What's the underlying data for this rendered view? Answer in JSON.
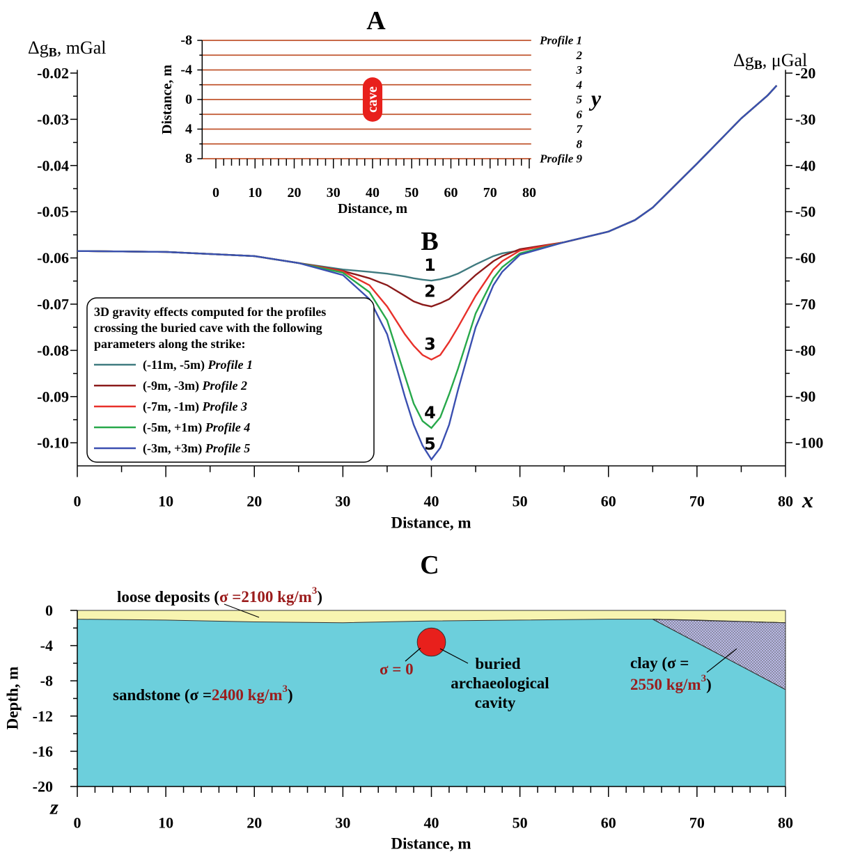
{
  "chart_data": [
    {
      "type": "profile_map",
      "title": "A",
      "xlim": [
        -3.5,
        80.5
      ],
      "ylim": [
        -8,
        8
      ],
      "xticks": [
        0,
        10,
        20,
        30,
        40,
        50,
        60,
        70,
        80
      ],
      "xticks_minor": [
        2,
        4,
        6,
        8,
        12,
        14,
        16,
        18,
        22,
        24,
        26,
        28,
        32,
        34,
        36,
        38,
        42,
        44,
        46,
        48,
        52,
        54,
        56,
        58,
        62,
        64,
        66,
        68,
        72,
        74,
        76,
        78
      ],
      "yticks": [
        -8,
        -4,
        0,
        4,
        8
      ],
      "yticks_minor": [
        -6,
        -2,
        2,
        6
      ],
      "xlabel": "Distance, m",
      "ylabel": "Distance, m",
      "axis_name": "y",
      "profile_color": "#c0552e",
      "profiles": [
        {
          "label": "Profile 1",
          "y": -8
        },
        {
          "label": "2",
          "y": -6
        },
        {
          "label": "3",
          "y": -4
        },
        {
          "label": "4",
          "y": -2
        },
        {
          "label": "5",
          "y": 0
        },
        {
          "label": "6",
          "y": 2
        },
        {
          "label": "7",
          "y": 4
        },
        {
          "label": "8",
          "y": 6
        },
        {
          "label": "Profile 9",
          "y": 8
        }
      ],
      "cave": {
        "label": "cave",
        "x": [
          37.5,
          42.5
        ],
        "y": [
          -3,
          3
        ],
        "color": "#e8201c"
      }
    },
    {
      "type": "line",
      "title": "B",
      "xlim": [
        0,
        80
      ],
      "ylim": [
        -0.105,
        -0.0193
      ],
      "y2lim": [
        -105,
        -19.3
      ],
      "xticks": [
        0,
        10,
        20,
        30,
        40,
        50,
        60,
        70,
        80
      ],
      "xticks_minor": [
        5,
        15,
        25,
        35,
        45,
        55,
        65,
        75
      ],
      "yticks": [
        -0.02,
        -0.03,
        -0.04,
        -0.05,
        -0.06,
        -0.07,
        -0.08,
        -0.09,
        {
          "value": -0.1,
          "label": "-0.10"
        }
      ],
      "yticks_minor": [
        -0.025,
        -0.035,
        -0.045,
        -0.055,
        -0.065,
        -0.075,
        -0.085,
        -0.095
      ],
      "y2ticks": [
        -20,
        -30,
        -40,
        -50,
        -60,
        -70,
        -80,
        -90,
        -100
      ],
      "y2ticks_minor": [
        -25,
        -35,
        -45,
        -55,
        -65,
        -75,
        -85,
        -95
      ],
      "xlabel": "Distance, m",
      "axis_name": "x",
      "ylabel": {
        "symbol": "Δg",
        "sub": "B",
        "unit": ", mGal"
      },
      "y2label": {
        "symbol": "Δg",
        "sub": "B",
        "unit": ", μGal"
      },
      "legend_title": [
        "3D gravity effects computed for the profiles",
        "crossing the buried cave with the following",
        "parameters along the strike:"
      ],
      "x": [
        0,
        10,
        20,
        25,
        30,
        33,
        35,
        37,
        38,
        39,
        40,
        41,
        42,
        43,
        45,
        47,
        48,
        50,
        55,
        60,
        63,
        65,
        70,
        75,
        78,
        79
      ],
      "series": [
        {
          "name": "Profile 1",
          "range": "(-11m, -5m)",
          "curve_label": "1",
          "color": "#3f7a7f",
          "values": [
            -0.0585,
            -0.0587,
            -0.0596,
            -0.0611,
            -0.0625,
            -0.063,
            -0.0634,
            -0.064,
            -0.0644,
            -0.0647,
            -0.0649,
            -0.0646,
            -0.0641,
            -0.0634,
            -0.0614,
            -0.0596,
            -0.059,
            -0.0584,
            -0.0566,
            -0.0543,
            -0.0518,
            -0.0491,
            -0.0396,
            -0.0298,
            -0.0248,
            -0.0227
          ]
        },
        {
          "name": "Profile 2",
          "range": "(-9m, -3m)",
          "curve_label": "2",
          "color": "#8b1a1a",
          "values": [
            -0.0585,
            -0.0587,
            -0.0596,
            -0.0611,
            -0.0628,
            -0.0644,
            -0.0659,
            -0.0682,
            -0.0694,
            -0.0701,
            -0.0705,
            -0.0698,
            -0.0689,
            -0.0672,
            -0.0637,
            -0.0607,
            -0.0596,
            -0.0581,
            -0.0566,
            -0.0543,
            -0.0518,
            -0.0491,
            -0.0396,
            -0.0298,
            -0.0248,
            -0.0227
          ]
        },
        {
          "name": "Profile 3",
          "range": "(-7m, -1m)",
          "curve_label": "3",
          "color": "#e8302a",
          "values": [
            -0.0585,
            -0.0587,
            -0.0596,
            -0.0611,
            -0.0629,
            -0.0659,
            -0.0705,
            -0.0765,
            -0.079,
            -0.081,
            -0.082,
            -0.081,
            -0.0782,
            -0.075,
            -0.0682,
            -0.0625,
            -0.0607,
            -0.0584,
            -0.0566,
            -0.0543,
            -0.0518,
            -0.0491,
            -0.0396,
            -0.0298,
            -0.0248,
            -0.0227
          ]
        },
        {
          "name": "Profile 4",
          "range": "(-5m, +1m)",
          "curve_label": "4",
          "color": "#27a84a",
          "values": [
            -0.0585,
            -0.0587,
            -0.0596,
            -0.0611,
            -0.0632,
            -0.0674,
            -0.0735,
            -0.0855,
            -0.0915,
            -0.0953,
            -0.0968,
            -0.0945,
            -0.0895,
            -0.084,
            -0.072,
            -0.0644,
            -0.062,
            -0.059,
            -0.0566,
            -0.0543,
            -0.0518,
            -0.0491,
            -0.0396,
            -0.0298,
            -0.0248,
            -0.0227
          ]
        },
        {
          "name": "Profile 5",
          "range": "(-3m, +3m)",
          "curve_label": "5",
          "color": "#3a4fb0",
          "values": [
            -0.0585,
            -0.0587,
            -0.0596,
            -0.0611,
            -0.0637,
            -0.0689,
            -0.0765,
            -0.09,
            -0.0961,
            -0.1006,
            -0.1036,
            -0.1011,
            -0.0961,
            -0.0886,
            -0.075,
            -0.0659,
            -0.063,
            -0.0593,
            -0.0566,
            -0.0543,
            -0.0518,
            -0.0491,
            -0.0396,
            -0.0298,
            -0.0248,
            -0.0227
          ]
        }
      ]
    },
    {
      "type": "section",
      "title": "C",
      "xlim": [
        0,
        80
      ],
      "ylim": [
        -20,
        0
      ],
      "xticks": [
        0,
        10,
        20,
        30,
        40,
        50,
        60,
        70,
        80
      ],
      "xticks_minor": [
        2,
        4,
        6,
        8,
        12,
        14,
        16,
        18,
        22,
        24,
        26,
        28,
        32,
        34,
        36,
        38,
        42,
        44,
        46,
        48,
        52,
        54,
        56,
        58,
        62,
        64,
        66,
        68,
        72,
        74,
        76,
        78
      ],
      "yticks": [
        0,
        -4,
        -8,
        -12,
        -16,
        -20
      ],
      "yticks_minor": [
        -2,
        -6,
        -10,
        -14,
        -18
      ],
      "xlabel": "Distance, m",
      "ylabel": "Depth, m",
      "axis_name": "z",
      "layers": [
        {
          "color": "#6ccfdc",
          "x": [
            0,
            80,
            80,
            0
          ],
          "y": [
            0,
            0,
            -20,
            -20
          ]
        },
        {
          "color": "#f7f4b0",
          "x": [
            0,
            80,
            80,
            70,
            65,
            60,
            50,
            40,
            30,
            20,
            10,
            0
          ],
          "y": [
            0,
            0,
            -1.4,
            -1.1,
            -1.0,
            -1.0,
            -1.1,
            -1.2,
            -1.4,
            -1.3,
            -1.1,
            -1.0
          ]
        },
        {
          "color": "#b9b9e6",
          "dotted": true,
          "x": [
            65,
            80,
            80
          ],
          "y": [
            -1.0,
            -1.4,
            -9.0
          ]
        }
      ],
      "cave": {
        "x": 40,
        "y": -3.6,
        "r": 1.6,
        "color": "#e8201c"
      },
      "labels": [
        [
          {
            "text": "loose deposits (",
            "color": "#000000"
          },
          {
            "text": "σ =2100 kg/m",
            "color": "#9b1c1c"
          },
          {
            "text": "3",
            "color": "#9b1c1c",
            "sup": true
          },
          {
            "text": ")",
            "color": "#000000"
          }
        ],
        [
          {
            "text": "sandstone (σ =",
            "color": "#000000"
          },
          {
            "text": "2400 kg/m",
            "color": "#9b1c1c"
          },
          {
            "text": "3",
            "color": "#9b1c1c",
            "sup": true
          },
          {
            "text": ")",
            "color": "#000000"
          }
        ],
        [
          {
            "text": "σ = 0",
            "color": "#9b1c1c"
          }
        ],
        [
          {
            "text": "buried",
            "color": "#000000"
          }
        ],
        [
          {
            "text": "archaeological",
            "color": "#000000"
          }
        ],
        [
          {
            "text": "cavity",
            "color": "#000000"
          }
        ],
        [
          {
            "text": "clay (σ =",
            "color": "#000000"
          }
        ],
        [
          {
            "text": "2550 kg/m",
            "color": "#9b1c1c"
          },
          {
            "text": "3",
            "color": "#9b1c1c",
            "sup": true
          },
          {
            "text": ")",
            "color": "#000000"
          }
        ]
      ]
    }
  ]
}
